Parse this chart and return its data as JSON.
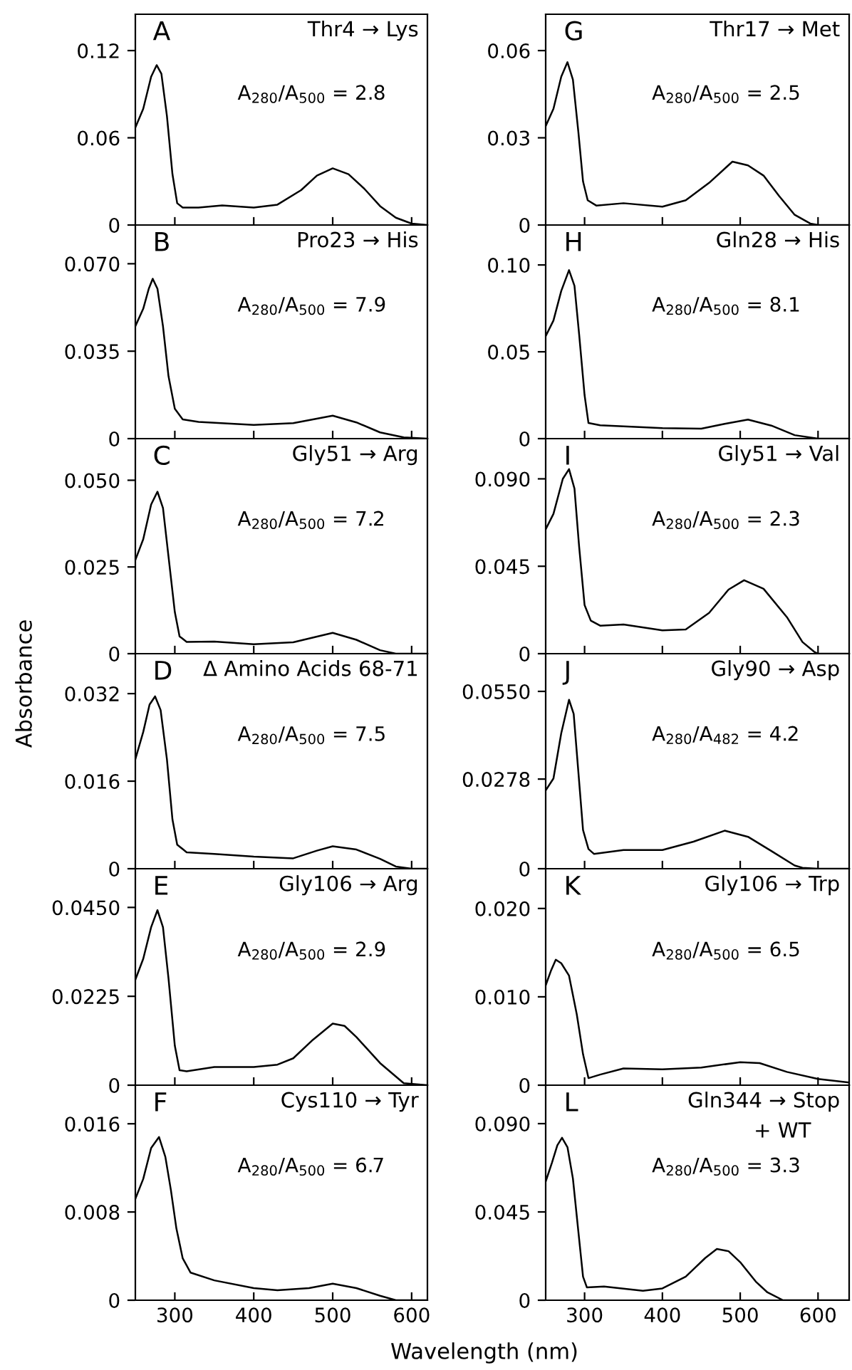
{
  "chart_data": [
    {
      "type": "line",
      "xlim": [
        250,
        620
      ],
      "ylim": [
        0,
        0.145
      ],
      "xticks": [
        300,
        400,
        500,
        600
      ],
      "yticks": [
        0,
        0.06,
        0.12
      ],
      "tick_labels": "y",
      "grid": false,
      "annotations": [
        "A",
        "Thr4 → Lys",
        "A$_{280}$/A$_{500}$ = 2.8"
      ],
      "series": [
        {
          "color": "#000000",
          "x": [
            250,
            260,
            270,
            277,
            283,
            290,
            297,
            303,
            310,
            330,
            360,
            400,
            430,
            460,
            480,
            500,
            520,
            540,
            560,
            580,
            600,
            620
          ],
          "values": [
            0.067,
            0.08,
            0.102,
            0.11,
            0.104,
            0.075,
            0.035,
            0.015,
            0.012,
            0.012,
            0.0135,
            0.012,
            0.014,
            0.024,
            0.034,
            0.039,
            0.035,
            0.025,
            0.013,
            0.005,
            0.001,
            0
          ]
        }
      ]
    },
    {
      "type": "line",
      "xlim": [
        250,
        620
      ],
      "ylim": [
        0,
        0.0855
      ],
      "xticks": [
        300,
        400,
        500,
        600
      ],
      "yticks": [
        0,
        {
          "value": 0.035,
          "label": "0.035"
        },
        {
          "value": 0.07,
          "label": "0.070"
        }
      ],
      "tick_labels": "y",
      "grid": false,
      "annotations": [
        "B",
        "Pro23 → His",
        "A$_{280}$/A$_{500}$ = 7.9"
      ],
      "series": [
        {
          "color": "#000000",
          "x": [
            250,
            260,
            267,
            272,
            278,
            285,
            292,
            300,
            310,
            330,
            400,
            450,
            500,
            530,
            560,
            590,
            620
          ],
          "values": [
            0.045,
            0.052,
            0.06,
            0.064,
            0.06,
            0.045,
            0.025,
            0.012,
            0.0077,
            0.0067,
            0.0055,
            0.0062,
            0.0092,
            0.0065,
            0.0025,
            0.0005,
            0
          ]
        }
      ]
    },
    {
      "type": "line",
      "xlim": [
        250,
        620
      ],
      "ylim": [
        0,
        0.062
      ],
      "xticks": [
        300,
        400,
        500,
        600
      ],
      "yticks": [
        0,
        0.025,
        {
          "value": 0.05,
          "label": "0.050"
        }
      ],
      "tick_labels": "y",
      "grid": false,
      "ylabel": "Absorbance",
      "annotations": [
        "C",
        "Gly51 → Arg",
        "A$_{280}$/A$_{500}$ = 7.2"
      ],
      "series": [
        {
          "color": "#000000",
          "x": [
            250,
            260,
            270,
            278,
            285,
            292,
            300,
            306,
            315,
            350,
            400,
            450,
            500,
            530,
            560,
            580,
            620
          ],
          "values": [
            0.027,
            0.033,
            0.043,
            0.0467,
            0.042,
            0.028,
            0.012,
            0.005,
            0.0034,
            0.0035,
            0.0027,
            0.0033,
            0.006,
            0.004,
            0.001,
            0,
            0
          ]
        }
      ]
    },
    {
      "type": "line",
      "xlim": [
        250,
        620
      ],
      "ylim": [
        0,
        0.0393
      ],
      "xticks": [
        300,
        400,
        500,
        600
      ],
      "yticks": [
        0,
        0.016,
        0.032
      ],
      "tick_labels": "y",
      "grid": false,
      "annotations": [
        "D",
        "Δ Amino Acids 68-71",
        "A$_{280}$/A$_{500}$ = 7.5"
      ],
      "series": [
        {
          "color": "#000000",
          "x": [
            250,
            260,
            268,
            275,
            282,
            290,
            297,
            303,
            315,
            350,
            400,
            450,
            480,
            500,
            530,
            560,
            580,
            600,
            620
          ],
          "values": [
            0.02,
            0.025,
            0.03,
            0.0315,
            0.029,
            0.02,
            0.009,
            0.0044,
            0.003,
            0.0027,
            0.0022,
            0.0019,
            0.0033,
            0.0041,
            0.0035,
            0.0018,
            0.0004,
            0,
            0
          ]
        }
      ]
    },
    {
      "type": "line",
      "xlim": [
        250,
        620
      ],
      "ylim": [
        0,
        0.0548
      ],
      "xticks": [
        300,
        400,
        500,
        600
      ],
      "yticks": [
        0,
        0.0225,
        {
          "value": 0.045,
          "label": "0.0450"
        }
      ],
      "tick_labels": "y",
      "grid": false,
      "annotations": [
        "E",
        "Gly106 → Arg",
        "A$_{280}$/A$_{500}$ = 2.9"
      ],
      "series": [
        {
          "color": "#000000",
          "x": [
            250,
            260,
            270,
            278,
            285,
            292,
            300,
            306,
            315,
            350,
            400,
            430,
            450,
            475,
            500,
            515,
            530,
            560,
            590,
            620
          ],
          "values": [
            0.0267,
            0.032,
            0.04,
            0.0443,
            0.04,
            0.027,
            0.01,
            0.0038,
            0.0035,
            0.0046,
            0.0046,
            0.0052,
            0.0068,
            0.0115,
            0.0156,
            0.015,
            0.0122,
            0.0056,
            0.0005,
            0
          ]
        }
      ]
    },
    {
      "type": "line",
      "xlim": [
        250,
        620
      ],
      "ylim": [
        0,
        0.0195
      ],
      "xticks": [
        300,
        400,
        500,
        600
      ],
      "yticks": [
        0,
        0.008,
        0.016
      ],
      "grid": false,
      "xlabel": "Wavelength (nm)",
      "annotations": [
        "F",
        "Cys110 → Tyr",
        "A$_{280}$/A$_{500}$ = 6.7"
      ],
      "series": [
        {
          "color": "#000000",
          "x": [
            250,
            260,
            270,
            280,
            288,
            295,
            302,
            310,
            320,
            350,
            400,
            430,
            470,
            500,
            530,
            560,
            580,
            620
          ],
          "values": [
            0.0092,
            0.011,
            0.0138,
            0.0148,
            0.013,
            0.01,
            0.0065,
            0.0038,
            0.0025,
            0.0018,
            0.0011,
            0.0009,
            0.0011,
            0.0015,
            0.0011,
            0.0004,
            0,
            0
          ]
        }
      ]
    },
    {
      "type": "line",
      "xlim": [
        250,
        640
      ],
      "ylim": [
        0,
        0.0725
      ],
      "xticks": [
        300,
        400,
        500,
        600
      ],
      "yticks": [
        0,
        0.03,
        0.06
      ],
      "tick_labels": "y",
      "grid": false,
      "annotations": [
        "G",
        "Thr17 → Met",
        "A$_{280}$/A$_{500}$ = 2.5"
      ],
      "series": [
        {
          "color": "#000000",
          "x": [
            250,
            260,
            270,
            278,
            285,
            292,
            298,
            304,
            315,
            350,
            400,
            430,
            460,
            490,
            510,
            530,
            550,
            570,
            590,
            600,
            640
          ],
          "values": [
            0.034,
            0.04,
            0.051,
            0.056,
            0.05,
            0.032,
            0.015,
            0.0085,
            0.0067,
            0.0075,
            0.0063,
            0.0085,
            0.0145,
            0.0218,
            0.0205,
            0.017,
            0.01,
            0.0035,
            0.0005,
            0,
            0
          ]
        }
      ]
    },
    {
      "type": "line",
      "xlim": [
        250,
        640
      ],
      "ylim": [
        0,
        0.123
      ],
      "xticks": [
        300,
        400,
        500,
        600
      ],
      "yticks": [
        0,
        0.05,
        {
          "value": 0.1,
          "label": "0.10"
        }
      ],
      "tick_labels": "y",
      "grid": false,
      "annotations": [
        "H",
        "Gln28 → His",
        "A$_{280}$/A$_{500}$ = 8.1"
      ],
      "series": [
        {
          "color": "#000000",
          "x": [
            250,
            260,
            270,
            280,
            287,
            293,
            300,
            305,
            320,
            400,
            450,
            480,
            510,
            540,
            570,
            600,
            640
          ],
          "values": [
            0.059,
            0.068,
            0.085,
            0.097,
            0.088,
            0.06,
            0.025,
            0.009,
            0.0077,
            0.006,
            0.0057,
            0.0085,
            0.011,
            0.0075,
            0.002,
            0,
            0
          ]
        }
      ]
    },
    {
      "type": "line",
      "xlim": [
        250,
        640
      ],
      "ylim": [
        0,
        0.1107
      ],
      "xticks": [
        300,
        400,
        500,
        600
      ],
      "yticks": [
        0,
        0.045,
        {
          "value": 0.09,
          "label": "0.090"
        }
      ],
      "tick_labels": "y",
      "grid": false,
      "annotations": [
        "I",
        "Gly51 → Val",
        "A$_{280}$/A$_{500}$ = 2.3"
      ],
      "series": [
        {
          "color": "#000000",
          "x": [
            250,
            260,
            272,
            280,
            287,
            293,
            300,
            308,
            320,
            350,
            400,
            430,
            460,
            485,
            505,
            530,
            560,
            580,
            595,
            600,
            640
          ],
          "values": [
            0.064,
            0.072,
            0.09,
            0.095,
            0.085,
            0.055,
            0.025,
            0.017,
            0.0144,
            0.015,
            0.012,
            0.0125,
            0.021,
            0.033,
            0.0378,
            0.0334,
            0.0188,
            0.006,
            0.001,
            0,
            0
          ]
        }
      ]
    },
    {
      "type": "line",
      "xlim": [
        250,
        640
      ],
      "ylim": [
        0,
        0.0667
      ],
      "xticks": [
        300,
        400,
        500,
        600
      ],
      "yticks": [
        0,
        0.0278,
        {
          "value": 0.055,
          "label": "0.0550"
        }
      ],
      "tick_labels": "y",
      "grid": false,
      "annotations": [
        "J",
        "Gly90 → Asp",
        "A$_{280}$/A$_{482}$ = 4.2"
      ],
      "series": [
        {
          "color": "#000000",
          "x": [
            250,
            260,
            270,
            280,
            286,
            292,
            298,
            305,
            312,
            350,
            400,
            440,
            480,
            510,
            540,
            570,
            580,
            600,
            640
          ],
          "values": [
            0.0243,
            0.028,
            0.042,
            0.0524,
            0.048,
            0.03,
            0.012,
            0.0061,
            0.0046,
            0.0058,
            0.0058,
            0.0084,
            0.0118,
            0.0099,
            0.0055,
            0.001,
            0.0003,
            0,
            0
          ]
        }
      ]
    },
    {
      "type": "line",
      "xlim": [
        250,
        640
      ],
      "ylim": [
        0,
        0.0245
      ],
      "xticks": [
        300,
        400,
        500,
        600
      ],
      "yticks": [
        0,
        {
          "value": 0.01,
          "label": "0.010"
        },
        {
          "value": 0.02,
          "label": "0.020"
        }
      ],
      "tick_labels": "y",
      "grid": false,
      "annotations": [
        "K",
        "Gly106 → Trp",
        "A$_{280}$/A$_{500}$ = 6.5"
      ],
      "series": [
        {
          "color": "#000000",
          "x": [
            250,
            257,
            263,
            270,
            280,
            290,
            298,
            305,
            320,
            350,
            400,
            450,
            500,
            525,
            560,
            600,
            640
          ],
          "values": [
            0.0113,
            0.013,
            0.0142,
            0.0138,
            0.0124,
            0.008,
            0.0035,
            0.0008,
            0.0012,
            0.0019,
            0.0018,
            0.002,
            0.0026,
            0.0025,
            0.0015,
            0.0007,
            0.0003
          ]
        }
      ]
    },
    {
      "type": "line",
      "xlim": [
        250,
        640
      ],
      "ylim": [
        0,
        0.1096
      ],
      "xticks": [
        300,
        400,
        500,
        600
      ],
      "yticks": [
        0,
        0.045,
        {
          "value": 0.09,
          "label": "0.090"
        }
      ],
      "grid": false,
      "annotations": [
        "L",
        "Gln344 → Stop",
        "+ WT",
        "A$_{280}$/A$_{500}$ = 3.3"
      ],
      "series": [
        {
          "color": "#000000",
          "x": [
            250,
            258,
            265,
            271,
            278,
            285,
            292,
            298,
            303,
            325,
            375,
            400,
            430,
            455,
            470,
            485,
            500,
            520,
            535,
            555,
            640
          ],
          "values": [
            0.0605,
            0.07,
            0.079,
            0.0828,
            0.078,
            0.062,
            0.035,
            0.012,
            0.0065,
            0.007,
            0.0048,
            0.006,
            0.012,
            0.0215,
            0.0261,
            0.025,
            0.0194,
            0.0095,
            0.004,
            0,
            0
          ]
        }
      ]
    }
  ]
}
